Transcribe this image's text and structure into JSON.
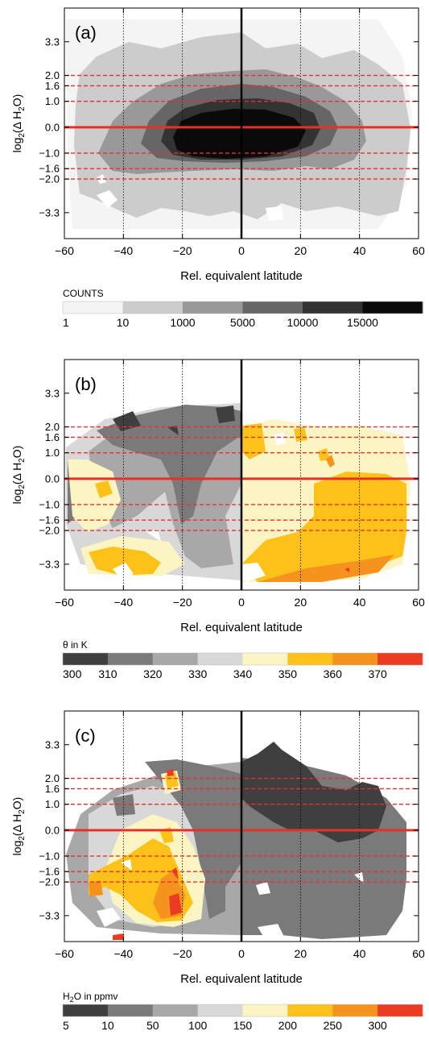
{
  "shared": {
    "xlabel": "Rel. equivalent latitude",
    "ylabel_base": "log",
    "ylabel_sub": "2",
    "ylabel_rest": "(Δ H",
    "ylabel_sub2": "2",
    "ylabel_end": "O)",
    "xlim": [
      -60,
      60
    ],
    "ylim": [
      -4.3,
      4.6
    ],
    "xticks": [
      "−60",
      "−40",
      "−20",
      "0",
      "20",
      "40",
      "60"
    ],
    "xtick_values": [
      -60,
      -40,
      -20,
      0,
      20,
      40,
      60
    ],
    "yticks": [
      "3.3",
      "2.0",
      "1.6",
      "1.0",
      "0.0",
      "−1.0",
      "−1.6",
      "−2.0",
      "−3.3"
    ],
    "ytick_values": [
      3.3,
      2.0,
      1.6,
      1.0,
      0.0,
      -1.0,
      -1.6,
      -2.0,
      -3.3
    ],
    "dashed_h_lines": [
      2.0,
      1.6,
      1.0,
      -1.0,
      -1.6,
      -2.0
    ],
    "solid_h_line": 0.0,
    "dotted_v_lines": [
      -40,
      -20,
      20,
      40
    ],
    "solid_v_line": 0,
    "line_colors": {
      "red": "#e8302a",
      "black": "#000000"
    }
  },
  "chart_data": [
    {
      "type": "heatmap",
      "panel_label": "(a)",
      "colorbar_title": "COUNTS",
      "colorbar_ticks": [
        "1",
        "10",
        "1000",
        "5000",
        "10000",
        "15000"
      ],
      "colors": [
        "#f4f4f4",
        "#cccccc",
        "#999999",
        "#666666",
        "#333333",
        "#0a0a0a"
      ]
    },
    {
      "type": "heatmap",
      "panel_label": "(b)",
      "colorbar_title": "θ in K",
      "colorbar_ticks": [
        "300",
        "310",
        "320",
        "330",
        "340",
        "350",
        "360",
        "370"
      ],
      "colors": [
        "#3f3f3f",
        "#7a7a7a",
        "#a8a8a8",
        "#d8d8d8",
        "#fbf5c4",
        "#fcc21a",
        "#f6921e",
        "#ec3b23"
      ]
    },
    {
      "type": "heatmap",
      "panel_label": "(c)",
      "colorbar_title_main": "H",
      "colorbar_title_sub": "2",
      "colorbar_title_rest": "O in ppmv",
      "colorbar_ticks": [
        "5",
        "10",
        "50",
        "100",
        "150",
        "200",
        "250",
        "300"
      ],
      "colors": [
        "#3f3f3f",
        "#7a7a7a",
        "#a8a8a8",
        "#d8d8d8",
        "#fbf5c4",
        "#fcc21a",
        "#f6921e",
        "#ec3b23"
      ]
    }
  ]
}
